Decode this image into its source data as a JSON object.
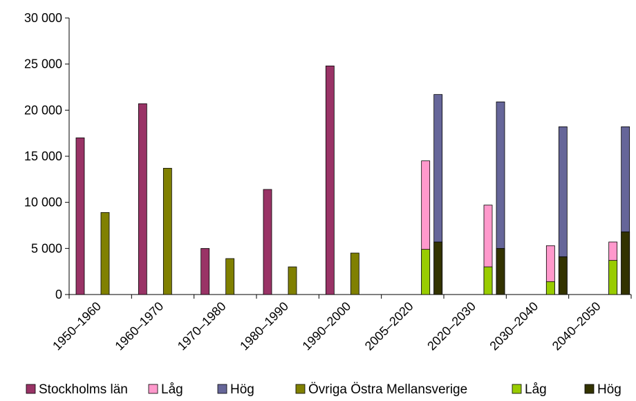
{
  "chart_data": {
    "type": "bar",
    "title": "",
    "xlabel": "",
    "ylabel": "",
    "ylim": [
      0,
      30000
    ],
    "yticks": [
      0,
      5000,
      10000,
      15000,
      20000,
      25000,
      30000
    ],
    "ytick_labels": [
      "0",
      "5 000",
      "10 000",
      "15 000",
      "20 000",
      "25 000",
      "30 000"
    ],
    "grid": false,
    "legend_position": "bottom",
    "categories": [
      "1950–1960",
      "1960–1970",
      "1970–1980",
      "1980–1990",
      "1990–2000",
      "2005–2020",
      "2020–2030",
      "2030–2040",
      "2040–2050"
    ],
    "series": [
      {
        "name": "Stockholms län",
        "color": "#993366",
        "values": [
          17000,
          20700,
          5000,
          11400,
          24800,
          null,
          null,
          null,
          null
        ]
      },
      {
        "name": "Låg",
        "color": "#ff99cc",
        "values": [
          null,
          null,
          null,
          null,
          null,
          14500,
          9700,
          5300,
          5700
        ]
      },
      {
        "name": "Hög",
        "color": "#666699",
        "values": [
          null,
          null,
          null,
          null,
          null,
          21700,
          20900,
          18200,
          18200
        ]
      },
      {
        "name": "Övriga Östra Mellansverige",
        "color": "#808000",
        "values": [
          8900,
          13700,
          3900,
          3000,
          4500,
          null,
          null,
          null,
          null
        ]
      },
      {
        "name": "Låg",
        "color": "#99cc00",
        "values": [
          null,
          null,
          null,
          null,
          null,
          4900,
          3000,
          1400,
          3700
        ]
      },
      {
        "name": "Hög",
        "color": "#333300",
        "values": [
          null,
          null,
          null,
          null,
          null,
          5700,
          5000,
          4100,
          6800
        ]
      }
    ]
  }
}
